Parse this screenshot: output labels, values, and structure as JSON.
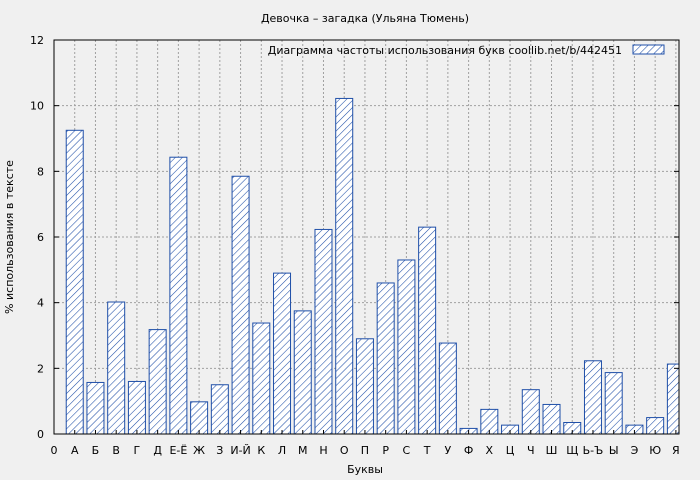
{
  "chart_data": {
    "type": "bar",
    "title": "Девочка – загадка (Ульяна Тюмень)",
    "xlabel": "Буквы",
    "ylabel": "% использования в тексте",
    "legend": {
      "label": "Диаграмма частоты использования букв  coollib.net/b/442451",
      "placement": "top-right"
    },
    "x_start_label": "0",
    "categories": [
      "А",
      "Б",
      "В",
      "Г",
      "Д",
      "Е-Ё",
      "Ж",
      "З",
      "И-Й",
      "К",
      "Л",
      "М",
      "Н",
      "О",
      "П",
      "Р",
      "С",
      "Т",
      "У",
      "Ф",
      "Х",
      "Ц",
      "Ч",
      "Ш",
      "Щ",
      "Ь-Ъ",
      "Ы",
      "Э",
      "Ю",
      "Я"
    ],
    "values": [
      9.25,
      1.57,
      4.02,
      1.6,
      3.18,
      8.43,
      0.98,
      1.5,
      7.85,
      3.38,
      4.9,
      3.75,
      6.23,
      10.22,
      2.9,
      4.6,
      5.3,
      6.3,
      2.77,
      0.17,
      0.75,
      0.27,
      1.35,
      0.9,
      0.35,
      2.23,
      1.87,
      0.27,
      0.5,
      2.13
    ],
    "ylim": [
      0,
      12
    ],
    "yticks": [
      0,
      2,
      4,
      6,
      8,
      10,
      12
    ],
    "grid": true,
    "colors": {
      "background": "#f0f0f0",
      "bar_stroke": "#1f4fa8",
      "hatch": "#1f4fa8",
      "grid": "#a0a0a0",
      "axis": "#000000"
    }
  }
}
